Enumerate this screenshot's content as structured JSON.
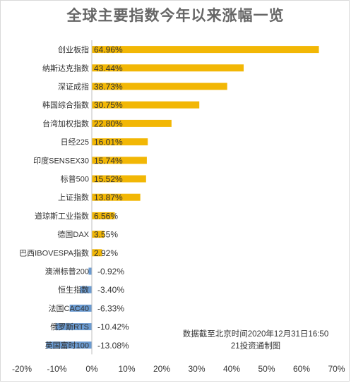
{
  "chart_data": {
    "type": "bar",
    "orientation": "horizontal",
    "title": "全球主要指数今年以来涨幅一览",
    "categories": [
      "创业板指",
      "纳斯达克指数",
      "深证成指",
      "韩国综合指数",
      "台湾加权指数",
      "日经225",
      "印度SENSEX30",
      "标普500",
      "上证指数",
      "道琼斯工业指数",
      "德国DAX",
      "巴西IBOVESPA指数",
      "澳洲标普200",
      "恒生指数",
      "法国CAC40",
      "俄罗斯RTS",
      "英国富时100"
    ],
    "values": [
      64.96,
      43.44,
      38.73,
      30.75,
      22.8,
      16.01,
      15.74,
      15.52,
      13.87,
      6.56,
      3.55,
      2.92,
      -0.92,
      -3.4,
      -6.33,
      -10.42,
      -13.08
    ],
    "value_labels": [
      "64.96%",
      "43.44%",
      "38.73%",
      "30.75%",
      "22.80%",
      "16.01%",
      "15.74%",
      "15.52%",
      "13.87%",
      "6.56%",
      "3.55%",
      "2.92%",
      "-0.92%",
      "-3.40%",
      "-6.33%",
      "-10.42%",
      "-13.08%"
    ],
    "xlim": [
      -20,
      70
    ],
    "xticks": [
      -20,
      -10,
      0,
      10,
      20,
      30,
      40,
      50,
      60,
      70
    ],
    "xtick_labels": [
      "-20%",
      "-10%",
      "0%",
      "10%",
      "20%",
      "30%",
      "40%",
      "50%",
      "60%",
      "70%"
    ],
    "grid": false,
    "legend": "none",
    "colors": {
      "positive": "#F2B705",
      "negative": "#6B9BD1"
    }
  },
  "note": {
    "line1": "数据截至北京时间2020年12月31日16:50",
    "line2": "21投资通制图"
  }
}
